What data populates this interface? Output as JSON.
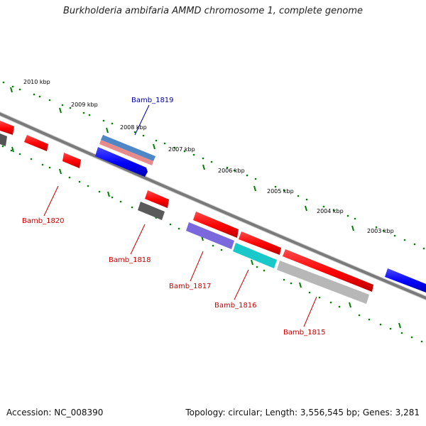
{
  "title": "Burkholderia ambifaria AMMD chromosome 1, complete genome",
  "footer": {
    "accession": "Accession: NC_008390",
    "topology": "Topology: circular; Length: 3,556,545 bp; Genes: 3,281"
  },
  "colors": {
    "backbone": "#7a7a7a",
    "tick": "#008000",
    "tick_label": "#000000",
    "label_reverse": "#cc0000",
    "label_forward": "#0000aa"
  },
  "ruler": {
    "ticks": [
      {
        "label": "2010 kbp"
      },
      {
        "label": "2009 kbp"
      },
      {
        "label": "2008 kbp"
      },
      {
        "label": "2007 kbp"
      },
      {
        "label": "2006 kbp"
      },
      {
        "label": "2005 kbp"
      },
      {
        "label": "2004 kbp"
      },
      {
        "label": "2003 kbp"
      }
    ]
  },
  "genes": [
    {
      "label": "Bamb_1819",
      "strand": "forward"
    },
    {
      "label": "Bamb_1820",
      "strand": "reverse"
    },
    {
      "label": "Bamb_1818",
      "strand": "reverse"
    },
    {
      "label": "Bamb_1817",
      "strand": "reverse"
    },
    {
      "label": "Bamb_1816",
      "strand": "reverse"
    },
    {
      "label": "Bamb_1815",
      "strand": "reverse"
    }
  ]
}
